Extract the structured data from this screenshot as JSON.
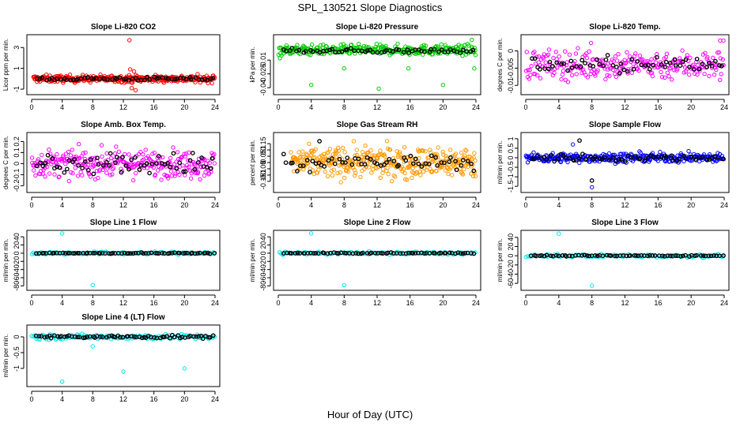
{
  "title": "SPL_130521  Slope Diagnostics",
  "xlabel": "Hour of Day (UTC)",
  "colors": {
    "ref_points": "#000000",
    "axis": "#000000"
  },
  "chart_data": [
    {
      "type": "scatter",
      "title": "Slope Li-820 CO2",
      "ylabel": "Licor ppm per min.",
      "color": "#ff0000",
      "xlim": [
        0,
        24
      ],
      "ylim": [
        -1.3,
        4.0
      ],
      "xticks": [
        0,
        4,
        8,
        12,
        16,
        20,
        24
      ],
      "yticks": [
        -1,
        1,
        3
      ],
      "series": [
        {
          "role": "dense_band",
          "x_range": [
            0.2,
            24
          ],
          "center": 0.0,
          "spread": 0.28,
          "n": 320,
          "outliers": [
            {
              "x": 12.8,
              "y": 3.7
            },
            {
              "x": 13.1,
              "y": -0.9
            },
            {
              "x": 13.6,
              "y": -1.1
            },
            {
              "x": 12.9,
              "y": 0.9
            },
            {
              "x": 13.4,
              "y": 0.7
            }
          ]
        },
        {
          "role": "reference",
          "x_range": [
            0.5,
            24
          ],
          "center": 0.0,
          "spread": 0.15,
          "n": 60
        }
      ]
    },
    {
      "type": "scatter",
      "title": "Slope Li-820 Pressure",
      "ylabel": "kPa per min.",
      "color": "#00cc00",
      "xlim": [
        0,
        24
      ],
      "ylim": [
        -0.045,
        0.015
      ],
      "xticks": [
        0,
        4,
        8,
        12,
        16,
        20,
        24
      ],
      "yticks": [
        -0.04,
        -0.025,
        -0.01
      ],
      "series": [
        {
          "role": "dense_band",
          "x_range": [
            0,
            24
          ],
          "center": 0.001,
          "spread": 0.0045,
          "n": 330,
          "outliers": [
            {
              "x": 0.2,
              "y": -0.008
            },
            {
              "x": 4.0,
              "y": -0.037
            },
            {
              "x": 8.0,
              "y": -0.019
            },
            {
              "x": 12.2,
              "y": -0.041
            },
            {
              "x": 15.8,
              "y": -0.019
            },
            {
              "x": 20.0,
              "y": -0.037
            },
            {
              "x": 23.8,
              "y": -0.019
            },
            {
              "x": 23.5,
              "y": 0.012
            }
          ]
        },
        {
          "role": "reference",
          "x_range": [
            0.5,
            24
          ],
          "center": 0.0,
          "spread": 0.002,
          "n": 60
        }
      ]
    },
    {
      "type": "scatter",
      "title": "Slope Li-820 Temp.",
      "ylabel": "degrees C per min.",
      "color": "#ff00ff",
      "xlim": [
        0,
        24
      ],
      "ylim": [
        -0.012,
        0.004
      ],
      "xticks": [
        0,
        4,
        8,
        12,
        16,
        20,
        24
      ],
      "yticks": [
        -0.01,
        -0.005,
        0.0
      ],
      "series": [
        {
          "role": "dense_band",
          "x_range": [
            0,
            24
          ],
          "center": -0.004,
          "spread": 0.0035,
          "n": 260,
          "outliers": [
            {
              "x": 23.5,
              "y": 0.003
            },
            {
              "x": 23.9,
              "y": 0.003
            },
            {
              "x": 7.9,
              "y": 0.0023
            }
          ]
        },
        {
          "role": "reference",
          "x_range": [
            0.5,
            24
          ],
          "center": -0.004,
          "spread": 0.002,
          "n": 60
        }
      ]
    },
    {
      "type": "scatter",
      "title": "Slope Amb. Box Temp.",
      "ylabel": "degrees C per min.",
      "color": "#ff00ff",
      "xlim": [
        0,
        24
      ],
      "ylim": [
        -0.24,
        0.26
      ],
      "xticks": [
        0,
        4,
        8,
        12,
        16,
        20,
        24
      ],
      "yticks": [
        -0.2,
        -0.1,
        0.0,
        0.1,
        0.2
      ],
      "series": [
        {
          "role": "dense_band",
          "x_range": [
            0,
            24
          ],
          "center": 0.0,
          "spread": 0.1,
          "n": 300,
          "outliers": []
        },
        {
          "role": "reference",
          "x_range": [
            0.5,
            24
          ],
          "center": 0.0,
          "spread": 0.08,
          "n": 60
        }
      ]
    },
    {
      "type": "scatter",
      "title": "Slope Gas Stream RH",
      "ylabel": "percent per min.",
      "color": "#ff9900",
      "xlim": [
        0,
        24
      ],
      "ylim": [
        -0.22,
        0.22
      ],
      "xticks": [
        0,
        4,
        8,
        12,
        16,
        20,
        24
      ],
      "yticks": [
        -0.15,
        -0.1,
        -0.05,
        0.0,
        0.05,
        0.1,
        0.15
      ],
      "series": [
        {
          "role": "dense_band",
          "x_range": [
            1.5,
            24
          ],
          "center": 0.0,
          "spread": 0.1,
          "n": 380,
          "outliers": []
        },
        {
          "role": "reference",
          "x_range": [
            0.5,
            24
          ],
          "center": 0.0,
          "spread": 0.05,
          "n": 60,
          "outliers": [
            {
              "x": 5.0,
              "y": 0.17
            }
          ]
        }
      ]
    },
    {
      "type": "scatter",
      "title": "Slope Sample Flow",
      "ylabel": "ml/min per min.",
      "color": "#0000ff",
      "xlim": [
        0,
        24
      ],
      "ylim": [
        -1.7,
        1.2
      ],
      "xticks": [
        0,
        4,
        8,
        12,
        16,
        20,
        24
      ],
      "yticks": [
        -1.5,
        -1,
        -0.5,
        0.0,
        0.5,
        1.0
      ],
      "series": [
        {
          "role": "dense_band",
          "x_range": [
            0,
            24
          ],
          "center": 0.0,
          "spread": 0.2,
          "n": 320,
          "outliers": [
            {
              "x": 8.0,
              "y": -1.55
            },
            {
              "x": 5.7,
              "y": 0.7
            }
          ]
        },
        {
          "role": "reference",
          "x_range": [
            0.5,
            24
          ],
          "center": 0.0,
          "spread": 0.15,
          "n": 60,
          "outliers": [
            {
              "x": 8.0,
              "y": -1.2
            },
            {
              "x": 6.5,
              "y": 0.9
            }
          ]
        }
      ]
    },
    {
      "type": "scatter",
      "title": "Slope Line 1 Flow",
      "ylabel": "ml/min per min.",
      "color": "#00e5ee",
      "xlim": [
        0,
        24
      ],
      "ylim": [
        -85,
        50
      ],
      "xticks": [
        0,
        4,
        8,
        12,
        16,
        20,
        24
      ],
      "yticks": [
        -80,
        -60,
        -40,
        -20,
        0,
        20,
        40
      ],
      "series": [
        {
          "role": "dense_band",
          "x_range": [
            0,
            24
          ],
          "center": 0,
          "spread": 3,
          "n": 120,
          "outliers": [
            {
              "x": 4.0,
              "y": 48
            },
            {
              "x": 8.0,
              "y": -78
            }
          ]
        },
        {
          "role": "reference",
          "x_range": [
            0.5,
            24
          ],
          "center": 0,
          "spread": 1,
          "n": 70
        }
      ]
    },
    {
      "type": "scatter",
      "title": "Slope Line 2 Flow",
      "ylabel": "ml/min per min.",
      "color": "#00e5ee",
      "xlim": [
        0,
        24
      ],
      "ylim": [
        -85,
        50
      ],
      "xticks": [
        0,
        4,
        8,
        12,
        16,
        20,
        24
      ],
      "yticks": [
        -80,
        -60,
        -40,
        -20,
        0,
        20,
        40
      ],
      "series": [
        {
          "role": "dense_band",
          "x_range": [
            0,
            24
          ],
          "center": 0,
          "spread": 3,
          "n": 120,
          "outliers": [
            {
              "x": 4.0,
              "y": 48
            },
            {
              "x": 8.0,
              "y": -78
            }
          ]
        },
        {
          "role": "reference",
          "x_range": [
            0.5,
            24
          ],
          "center": 0,
          "spread": 1,
          "n": 70
        }
      ]
    },
    {
      "type": "scatter",
      "title": "Slope Line 3 Flow",
      "ylabel": "ml/min per min.",
      "color": "#00e5ee",
      "xlim": [
        0,
        24
      ],
      "ylim": [
        -70,
        50
      ],
      "xticks": [
        0,
        4,
        8,
        12,
        16,
        20,
        24
      ],
      "yticks": [
        -60,
        -40,
        -20,
        0,
        20,
        40
      ],
      "series": [
        {
          "role": "dense_band",
          "x_range": [
            0,
            24
          ],
          "center": 0,
          "spread": 3,
          "n": 120,
          "outliers": [
            {
              "x": 4.0,
              "y": 48
            },
            {
              "x": 8.0,
              "y": -65
            }
          ]
        },
        {
          "role": "reference",
          "x_range": [
            0.5,
            24
          ],
          "center": 0,
          "spread": 1,
          "n": 70
        }
      ]
    },
    {
      "type": "scatter",
      "title": "Slope Line 4 (LT) Flow",
      "ylabel": "ml/min per min.",
      "color": "#00e5ee",
      "xlim": [
        0,
        24
      ],
      "ylim": [
        -1.5,
        0.3
      ],
      "xticks": [
        0,
        4,
        8,
        12,
        16,
        20,
        24
      ],
      "yticks": [
        -1.0,
        -0.5,
        0.0
      ],
      "series": [
        {
          "role": "dense_band",
          "x_range": [
            0,
            24
          ],
          "center": 0.0,
          "spread": 0.07,
          "n": 140,
          "outliers": [
            {
              "x": 8.0,
              "y": -0.3
            },
            {
              "x": 4.0,
              "y": -1.42
            },
            {
              "x": 12.0,
              "y": -1.1
            },
            {
              "x": 20.0,
              "y": -1.0
            }
          ]
        },
        {
          "role": "reference",
          "x_range": [
            0.5,
            24
          ],
          "center": 0.0,
          "spread": 0.04,
          "n": 70
        }
      ]
    }
  ]
}
